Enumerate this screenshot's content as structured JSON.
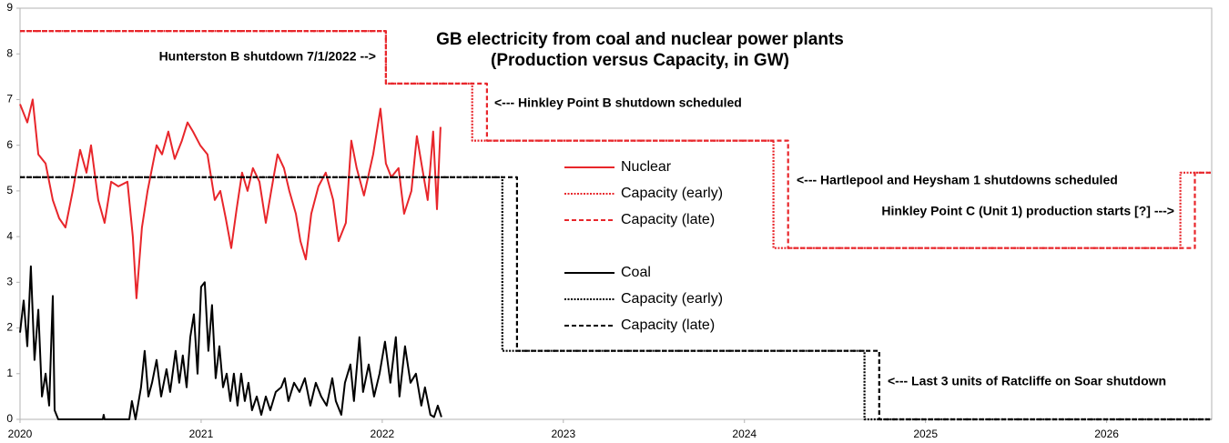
{
  "chart_data": {
    "type": "line",
    "title": "GB electricity from coal and nuclear power plants",
    "subtitle": "(Production versus Capacity, in GW)",
    "annotations": [
      "Hunterston B shutdown 7/1/2022 -->",
      "<--- Hinkley Point B shutdown scheduled",
      "<--- Hartlepool and Heysham 1 shutdowns scheduled",
      "Hinkley Point C (Unit 1) production starts [?] --->",
      "<--- Last 3 units of Ratcliffe on Soar shutdown"
    ],
    "xlim": [
      2020,
      2026.58
    ],
    "xticks": [
      2020,
      2021,
      2022,
      2023,
      2024,
      2025,
      2026
    ],
    "ylim": [
      0,
      9
    ],
    "yticks": [
      0,
      1,
      2,
      3,
      4,
      5,
      6,
      7,
      8,
      9
    ],
    "grid": false,
    "series": [
      {
        "name": "Nuclear",
        "color": "#e8262b",
        "style": "solid",
        "x": [
          2020.0,
          2020.04,
          2020.07,
          2020.101,
          2020.141,
          2020.181,
          2020.216,
          2020.251,
          2020.291,
          2020.332,
          2020.367,
          2020.392,
          2020.432,
          2020.467,
          2020.503,
          2020.543,
          2020.593,
          2020.623,
          2020.643,
          2020.673,
          2020.704,
          2020.734,
          2020.754,
          2020.784,
          2020.819,
          2020.854,
          2020.894,
          2020.925,
          2020.955,
          2020.995,
          2021.035,
          2021.075,
          2021.106,
          2021.136,
          2021.166,
          2021.196,
          2021.226,
          2021.256,
          2021.286,
          2021.322,
          2021.357,
          2021.387,
          2021.422,
          2021.457,
          2021.487,
          2021.523,
          2021.548,
          2021.578,
          2021.608,
          2021.648,
          2021.688,
          2021.729,
          2021.759,
          2021.799,
          2021.829,
          2021.859,
          2021.899,
          2021.95,
          2021.99,
          2022.02,
          2022.05,
          2022.09,
          2022.121,
          2022.161,
          2022.191,
          2022.221,
          2022.251,
          2022.281,
          2022.302,
          2022.322
        ],
        "values": [
          6.9,
          6.5,
          7.0,
          5.8,
          5.6,
          4.8,
          4.4,
          4.2,
          5.0,
          5.9,
          5.4,
          6.0,
          4.8,
          4.3,
          5.2,
          5.1,
          5.2,
          4.0,
          2.65,
          4.2,
          5.0,
          5.6,
          6.0,
          5.8,
          6.3,
          5.7,
          6.1,
          6.5,
          6.3,
          6.0,
          5.8,
          4.8,
          5.0,
          4.4,
          3.75,
          4.6,
          5.4,
          5.0,
          5.5,
          5.2,
          4.3,
          5.0,
          5.8,
          5.5,
          5.0,
          4.5,
          3.9,
          3.5,
          4.5,
          5.1,
          5.4,
          4.8,
          3.9,
          4.3,
          6.1,
          5.5,
          4.9,
          5.8,
          6.8,
          5.6,
          5.3,
          5.5,
          4.5,
          5.0,
          6.2,
          5.5,
          4.8,
          6.3,
          4.6,
          6.4
        ]
      },
      {
        "name": "Capacity (early)",
        "color": "#e8262b",
        "style": "dotted",
        "x": [
          2020,
          2022.02,
          2022.02,
          2022.497,
          2022.497,
          2024.16,
          2024.16,
          2026.407,
          2026.407,
          2026.58
        ],
        "values": [
          8.5,
          8.5,
          7.35,
          7.35,
          6.1,
          6.1,
          3.75,
          3.75,
          5.4,
          5.4
        ]
      },
      {
        "name": "Capacity (late)",
        "color": "#e8262b",
        "style": "dashed",
        "x": [
          2020,
          2022.02,
          2022.02,
          2022.578,
          2022.578,
          2024.241,
          2024.241,
          2026.487,
          2026.487,
          2026.58
        ],
        "values": [
          8.5,
          8.5,
          7.35,
          7.35,
          6.1,
          6.1,
          3.75,
          3.75,
          5.4,
          5.4
        ]
      },
      {
        "name": "Coal",
        "color": "#000000",
        "style": "solid",
        "x": [
          2020.0,
          2020.02,
          2020.04,
          2020.06,
          2020.08,
          2020.101,
          2020.121,
          2020.141,
          2020.161,
          2020.181,
          2020.191,
          2020.211,
          2020.397,
          2020.457,
          2020.462,
          2020.467,
          2020.603,
          2020.618,
          2020.638,
          2020.668,
          2020.688,
          2020.709,
          2020.729,
          2020.754,
          2020.779,
          2020.809,
          2020.829,
          2020.859,
          2020.879,
          2020.899,
          2020.92,
          2020.94,
          2020.96,
          2020.98,
          2021.0,
          2021.02,
          2021.04,
          2021.06,
          2021.08,
          2021.101,
          2021.121,
          2021.141,
          2021.161,
          2021.181,
          2021.201,
          2021.221,
          2021.241,
          2021.261,
          2021.281,
          2021.307,
          2021.332,
          2021.357,
          2021.382,
          2021.412,
          2021.442,
          2021.462,
          2021.482,
          2021.513,
          2021.543,
          2021.573,
          2021.603,
          2021.633,
          2021.663,
          2021.693,
          2021.724,
          2021.744,
          2021.774,
          2021.794,
          2021.824,
          2021.844,
          2021.874,
          2021.894,
          2021.925,
          2021.955,
          2021.985,
          2022.015,
          2022.045,
          2022.075,
          2022.095,
          2022.126,
          2022.156,
          2022.186,
          2022.216,
          2022.236,
          2022.266,
          2022.286,
          2022.307,
          2022.327
        ],
        "values": [
          1.9,
          2.6,
          1.6,
          3.35,
          1.3,
          2.4,
          0.5,
          1.0,
          0.3,
          2.7,
          0.2,
          0,
          0,
          0,
          0.1,
          0,
          0,
          0.4,
          0,
          0.7,
          1.5,
          0.5,
          0.8,
          1.3,
          0.5,
          1.1,
          0.6,
          1.5,
          0.8,
          1.4,
          0.7,
          1.8,
          2.3,
          1.0,
          2.9,
          3.0,
          1.5,
          2.5,
          0.9,
          1.6,
          0.7,
          1.0,
          0.4,
          1.0,
          0.3,
          1.0,
          0.4,
          0.8,
          0.2,
          0.5,
          0.1,
          0.5,
          0.2,
          0.6,
          0.7,
          0.9,
          0.4,
          0.8,
          0.6,
          0.9,
          0.3,
          0.8,
          0.5,
          0.3,
          0.9,
          0.4,
          0.1,
          0.8,
          1.2,
          0.4,
          1.8,
          0.6,
          1.2,
          0.5,
          1.0,
          1.7,
          0.8,
          1.8,
          0.5,
          1.6,
          0.8,
          1.0,
          0.3,
          0.7,
          0.1,
          0.05,
          0.3,
          0.05
        ]
      },
      {
        "name": "Capacity (early)",
        "color": "#000000",
        "style": "dotted",
        "x": [
          2020,
          2022.663,
          2022.663,
          2024.663,
          2024.663,
          2026.58
        ],
        "values": [
          5.3,
          5.3,
          1.5,
          1.5,
          0,
          0
        ]
      },
      {
        "name": "Capacity (late)",
        "color": "#000000",
        "style": "dashed",
        "x": [
          2020,
          2022.744,
          2022.744,
          2024.744,
          2024.744,
          2026.58
        ],
        "values": [
          5.3,
          5.3,
          1.5,
          1.5,
          0,
          0
        ]
      }
    ]
  }
}
